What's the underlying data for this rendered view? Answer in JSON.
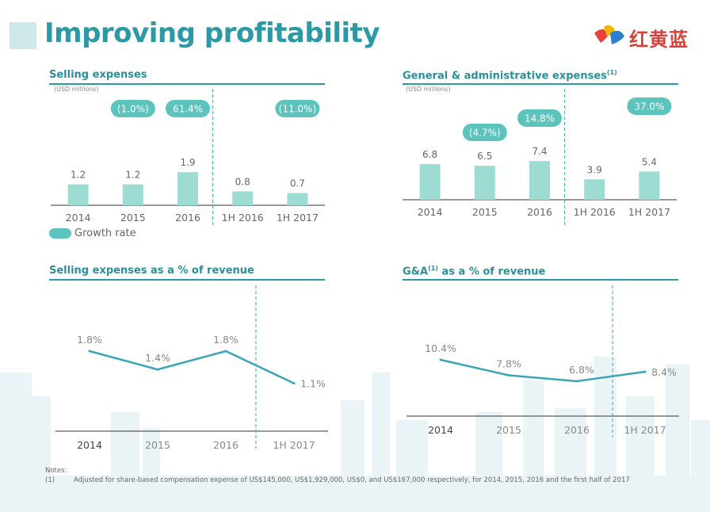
{
  "header": {
    "title": "Improving profitability",
    "logo_text": "红黄蓝"
  },
  "colors": {
    "bar": "#9ddcd2",
    "bubble": "#5cc4bc",
    "line": "#3aa6b5",
    "title": "#2b9aa6",
    "rule": "#2b9aa6"
  },
  "panels": {
    "selling": {
      "title": "Selling expenses",
      "unit": "(USD millions)"
    },
    "ga": {
      "title": "General & administrative expenses",
      "title_sup": "(1)",
      "unit": "(USD millions)"
    },
    "selling_pct": {
      "title": "Selling expenses as a % of revenue"
    },
    "ga_pct": {
      "title_pre": "G&A",
      "title_sup": "(1)",
      "title_post": " as a % of revenue"
    }
  },
  "legend": {
    "label": "Growth rate"
  },
  "notes": {
    "heading": "Notes:",
    "items": [
      {
        "num": "(1)",
        "text": "Adjusted for share-based compensation expense of US$145,000, US$1,929,000, US$0, and US$167,000 respectively, for 2014, 2015, 2016 and the first half of 2017"
      }
    ]
  },
  "chart_data": [
    {
      "type": "bar",
      "title": "Selling expenses",
      "unit": "(USD millions)",
      "categories": [
        "2014",
        "2015",
        "2016",
        "1H 2016",
        "1H 2017"
      ],
      "values": [
        1.2,
        1.2,
        1.9,
        0.8,
        0.7
      ],
      "value_labels": [
        "1.2",
        "1.2",
        "1.9",
        "0.8",
        "0.7"
      ],
      "growth_labels": [
        null,
        "(1.0%)",
        "61.4%",
        null,
        "(11.0%)"
      ],
      "legend": [
        "Growth rate"
      ]
    },
    {
      "type": "bar",
      "title": "General & administrative expenses(1)",
      "unit": "(USD millions)",
      "categories": [
        "2014",
        "2015",
        "2016",
        "1H 2016",
        "1H 2017"
      ],
      "values": [
        6.8,
        6.5,
        7.4,
        3.9,
        5.4
      ],
      "value_labels": [
        "6.8",
        "6.5",
        "7.4",
        "3.9",
        "5.4"
      ],
      "growth_labels": [
        null,
        "(4.7%)",
        "14.8%",
        null,
        "37.0%"
      ]
    },
    {
      "type": "line",
      "title": "Selling expenses as a % of revenue",
      "categories": [
        "2014",
        "2015",
        "2016",
        "1H 2017"
      ],
      "values": [
        1.8,
        1.4,
        1.8,
        1.1
      ],
      "value_labels": [
        "1.8%",
        "1.4%",
        "1.8%",
        "1.1%"
      ]
    },
    {
      "type": "line",
      "title": "G&A(1) as a % of revenue",
      "categories": [
        "2014",
        "2015",
        "2016",
        "1H 2017"
      ],
      "values": [
        10.4,
        7.8,
        6.8,
        8.4
      ],
      "value_labels": [
        "10.4%",
        "7.8%",
        "6.8%",
        "8.4%"
      ]
    }
  ]
}
